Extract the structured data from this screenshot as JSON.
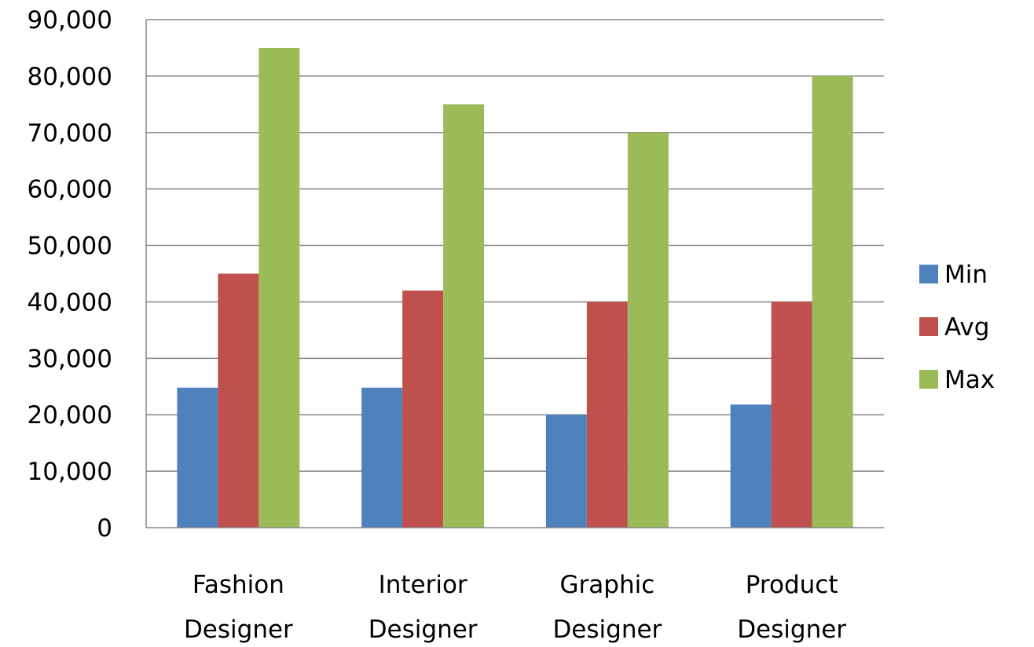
{
  "chart_data": {
    "type": "bar",
    "title": "",
    "xlabel": "",
    "ylabel": "",
    "categories": [
      [
        "Fashion",
        "Designer"
      ],
      [
        "Interior",
        "Designer"
      ],
      [
        "Graphic",
        "Designer"
      ],
      [
        "Product",
        "Designer"
      ]
    ],
    "series": [
      {
        "name": "Min",
        "color": "#4F81BD",
        "values": [
          24800,
          24800,
          20000,
          21800
        ]
      },
      {
        "name": "Avg",
        "color": "#C0504D",
        "values": [
          45000,
          42000,
          40000,
          40000
        ]
      },
      {
        "name": "Max",
        "color": "#9BBB59",
        "values": [
          85000,
          75000,
          70000,
          80000
        ]
      }
    ],
    "ylim": [
      0,
      90000
    ],
    "yticks": [
      "0",
      "10,000",
      "20,000",
      "30,000",
      "40,000",
      "50,000",
      "60,000",
      "70,000",
      "80,000",
      "90,000"
    ],
    "grid": true,
    "legend_position": "right"
  }
}
